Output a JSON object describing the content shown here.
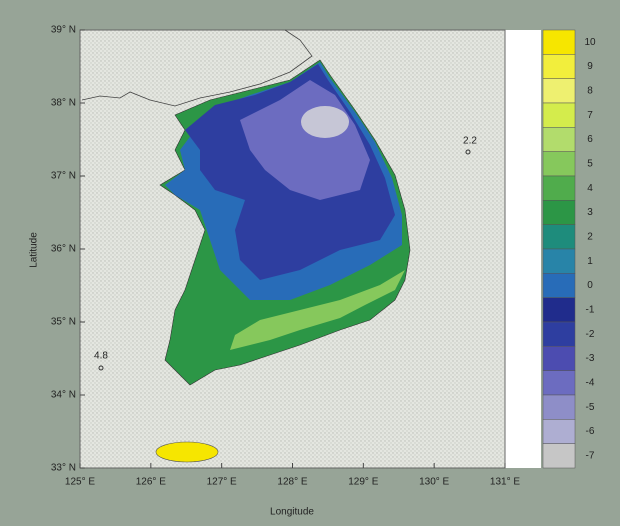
{
  "map": {
    "x_label": "Longitude",
    "y_label": "Latitude",
    "xlim": [
      125,
      131
    ],
    "ylim": [
      33,
      39
    ],
    "xticks": [
      {
        "value": 125,
        "label": "125° E"
      },
      {
        "value": 126,
        "label": "126° E"
      },
      {
        "value": 127,
        "label": "127° E"
      },
      {
        "value": 128,
        "label": "128° E"
      },
      {
        "value": 129,
        "label": "129° E"
      },
      {
        "value": 130,
        "label": "130° E"
      },
      {
        "value": 131,
        "label": "131° E"
      }
    ],
    "yticks": [
      {
        "value": 33,
        "label": "33° N"
      },
      {
        "value": 34,
        "label": "34° N"
      },
      {
        "value": 35,
        "label": "35° N"
      },
      {
        "value": 36,
        "label": "36° N"
      },
      {
        "value": 37,
        "label": "37° N"
      },
      {
        "value": 38,
        "label": "38° N"
      },
      {
        "value": 39,
        "label": "39° N"
      }
    ],
    "annotations": [
      "2.2",
      "4.8"
    ]
  },
  "colorbar": {
    "ticks": [
      10,
      9,
      8,
      7,
      6,
      5,
      4,
      3,
      2,
      1,
      0,
      -1,
      -2,
      -3,
      -4,
      -5,
      -6,
      -7
    ],
    "colors": [
      "#f6e600",
      "#f2ee3c",
      "#eef070",
      "#d4ec4c",
      "#b2dc6c",
      "#86c85c",
      "#50ac4c",
      "#2c9646",
      "#1e8c7c",
      "#2884a8",
      "#286cb8",
      "#202c8c",
      "#2e3ea0",
      "#4c4cb0",
      "#6c6cc0",
      "#8e8ec8",
      "#aeaed2",
      "#c6c6c6"
    ]
  }
}
